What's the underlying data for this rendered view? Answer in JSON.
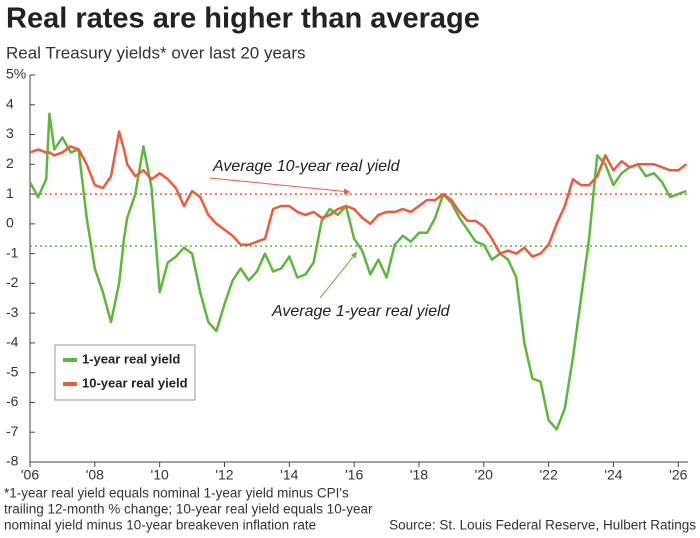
{
  "chart_data": {
    "type": "line",
    "title": "Real rates are higher than average",
    "subtitle": "Real Treasury yields* over last 20 years",
    "x": [
      2006,
      2006.25,
      2006.5,
      2006.6,
      2006.75,
      2007,
      2007.25,
      2007.5,
      2007.75,
      2008,
      2008.25,
      2008.5,
      2008.75,
      2008.9,
      2009,
      2009.25,
      2009.5,
      2009.75,
      2010,
      2010.25,
      2010.5,
      2010.75,
      2011,
      2011.25,
      2011.5,
      2011.75,
      2012,
      2012.25,
      2012.5,
      2012.75,
      2013,
      2013.25,
      2013.5,
      2013.75,
      2014,
      2014.25,
      2014.5,
      2014.75,
      2015,
      2015.25,
      2015.5,
      2015.75,
      2016,
      2016.25,
      2016.5,
      2016.75,
      2017,
      2017.25,
      2017.5,
      2017.75,
      2018,
      2018.25,
      2018.5,
      2018.75,
      2019,
      2019.25,
      2019.5,
      2019.75,
      2020,
      2020.25,
      2020.5,
      2020.75,
      2021,
      2021.25,
      2021.5,
      2021.75,
      2022,
      2022.25,
      2022.5,
      2022.75,
      2023,
      2023.25,
      2023.5,
      2023.75,
      2024,
      2024.25,
      2024.5,
      2024.75,
      2025,
      2025.25,
      2025.5,
      2025.75,
      2026,
      2026.25
    ],
    "series": [
      {
        "name": "1-year real yield",
        "color": "#5cb83a",
        "values": [
          1.4,
          0.9,
          1.5,
          3.7,
          2.5,
          2.9,
          2.4,
          2.5,
          0.2,
          -1.5,
          -2.3,
          -3.3,
          -2.0,
          -0.5,
          0.2,
          1.0,
          2.6,
          1.2,
          -2.3,
          -1.3,
          -1.1,
          -0.8,
          -1.0,
          -2.3,
          -3.3,
          -3.6,
          -2.7,
          -1.9,
          -1.5,
          -1.9,
          -1.6,
          -1.0,
          -1.6,
          -1.5,
          -1.1,
          -1.8,
          -1.7,
          -1.3,
          0.1,
          0.5,
          0.3,
          0.6,
          -0.5,
          -0.9,
          -1.7,
          -1.2,
          -1.8,
          -0.7,
          -0.4,
          -0.6,
          -0.3,
          -0.3,
          0.2,
          1.0,
          0.7,
          0.2,
          -0.2,
          -0.6,
          -0.7,
          -1.2,
          -1.0,
          -1.2,
          -1.8,
          -4.0,
          -5.2,
          -5.3,
          -6.6,
          -6.9,
          -6.2,
          -4.5,
          -2.5,
          -0.5,
          2.3,
          2.0,
          1.3,
          1.7,
          1.9,
          2.0,
          1.6,
          1.7,
          1.4,
          0.9,
          1.0,
          1.1
        ]
      },
      {
        "name": "10-year real yield",
        "color": "#f05a3a",
        "values": [
          2.4,
          2.5,
          2.4,
          2.4,
          2.3,
          2.4,
          2.6,
          2.5,
          2.0,
          1.3,
          1.2,
          1.6,
          3.1,
          2.5,
          2.0,
          1.6,
          1.8,
          1.5,
          1.7,
          1.5,
          1.2,
          0.6,
          1.1,
          0.9,
          0.3,
          0.0,
          -0.2,
          -0.4,
          -0.7,
          -0.7,
          -0.6,
          -0.5,
          0.5,
          0.6,
          0.6,
          0.4,
          0.3,
          0.4,
          0.2,
          0.3,
          0.5,
          0.6,
          0.5,
          0.2,
          0.0,
          0.3,
          0.4,
          0.4,
          0.5,
          0.4,
          0.6,
          0.8,
          0.8,
          1.0,
          0.8,
          0.4,
          0.1,
          0.1,
          -0.1,
          -0.5,
          -1.0,
          -0.9,
          -1.0,
          -0.8,
          -1.1,
          -1.0,
          -0.7,
          0.0,
          0.6,
          1.5,
          1.3,
          1.3,
          1.6,
          2.3,
          1.8,
          2.1,
          1.9,
          2.0,
          2.0,
          2.0,
          1.9,
          1.8,
          1.8,
          2.0
        ]
      }
    ],
    "reference_lines": [
      {
        "label": "Average 10-year real yield",
        "value": 1.0,
        "color": "#f05a3a"
      },
      {
        "label": "Average 1-year real yield",
        "value": -0.75,
        "color": "#5cb83a"
      }
    ],
    "xlim": [
      2006,
      2026.3
    ],
    "xticks": [
      {
        "value": 2006,
        "label": "'06"
      },
      {
        "value": 2008,
        "label": "'08"
      },
      {
        "value": 2010,
        "label": "'10"
      },
      {
        "value": 2012,
        "label": "'12"
      },
      {
        "value": 2014,
        "label": "'14"
      },
      {
        "value": 2016,
        "label": "'16"
      },
      {
        "value": 2018,
        "label": "'18"
      },
      {
        "value": 2020,
        "label": "'20"
      },
      {
        "value": 2022,
        "label": "'22"
      },
      {
        "value": 2024,
        "label": "'24"
      },
      {
        "value": 2026,
        "label": "'26"
      }
    ],
    "ylim": [
      -8,
      5
    ],
    "yticks": [
      -8,
      -7,
      -6,
      -5,
      -4,
      -3,
      -2,
      -1,
      0,
      1,
      2,
      3,
      4,
      {
        "value": 5,
        "label": "5%"
      }
    ],
    "grid": false,
    "legend": "lower left",
    "footnote": [
      "*1-year real yield equals nominal 1-year yield minus CPI's",
      "trailing 12-month % change; 10-year real yield equals 10-year",
      "nominal yield minus 10-year breakeven inflation rate"
    ],
    "source": "Source: St. Louis Federal Reserve, Hulbert Ratings"
  }
}
